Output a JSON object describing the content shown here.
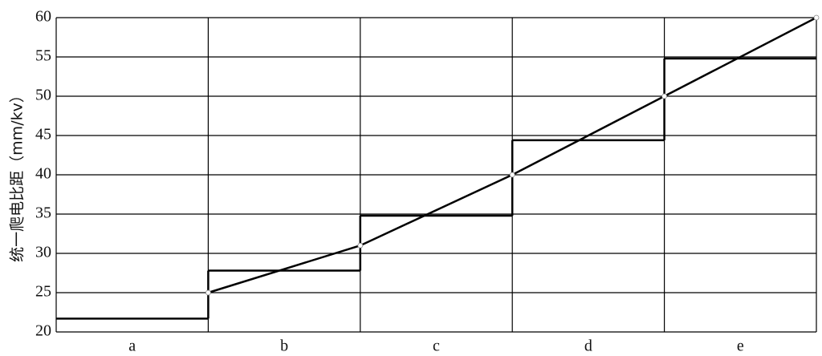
{
  "chart_data": {
    "type": "step",
    "y_label": "统一爬电比距（mm/kv）",
    "categories": [
      "a",
      "b",
      "c",
      "d",
      "e"
    ],
    "series": [
      {
        "type": "step",
        "color": "#000000",
        "values": [
          21.7,
          27.8,
          34.8,
          44.4,
          54.8
        ]
      },
      {
        "type": "line",
        "color": "#000000",
        "values": [
          25,
          31,
          40,
          50,
          60
        ]
      }
    ],
    "ylim": [
      20,
      60
    ],
    "yticks": [
      20,
      25,
      30,
      35,
      40,
      45,
      50,
      55,
      60
    ],
    "grid": true
  }
}
